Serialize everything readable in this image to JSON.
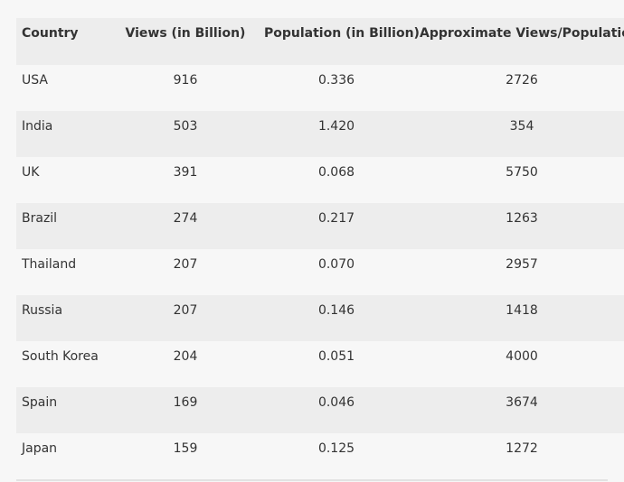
{
  "table": {
    "headers": [
      "Country",
      "Views (in Billion)",
      "Population (in Billion)",
      "Approximate Views/Population"
    ],
    "rows": [
      [
        "USA",
        "916",
        "0.336",
        "2726"
      ],
      [
        "India",
        "503",
        "1.420",
        "354"
      ],
      [
        "UK",
        "391",
        "0.068",
        "5750"
      ],
      [
        "Brazil",
        "274",
        "0.217",
        "1263"
      ],
      [
        "Thailand",
        "207",
        "0.070",
        "2957"
      ],
      [
        "Russia",
        "207",
        "0.146",
        "1418"
      ],
      [
        "South Korea",
        "204",
        "0.051",
        "4000"
      ],
      [
        "Spain",
        "169",
        "0.046",
        "3674"
      ],
      [
        "Japan",
        "159",
        "0.125",
        "1272"
      ]
    ]
  },
  "colors": {
    "header_bg": "#ededed",
    "row_alt_bg": "#ededed",
    "page_bg": "#f7f7f7",
    "text": "#333333"
  }
}
